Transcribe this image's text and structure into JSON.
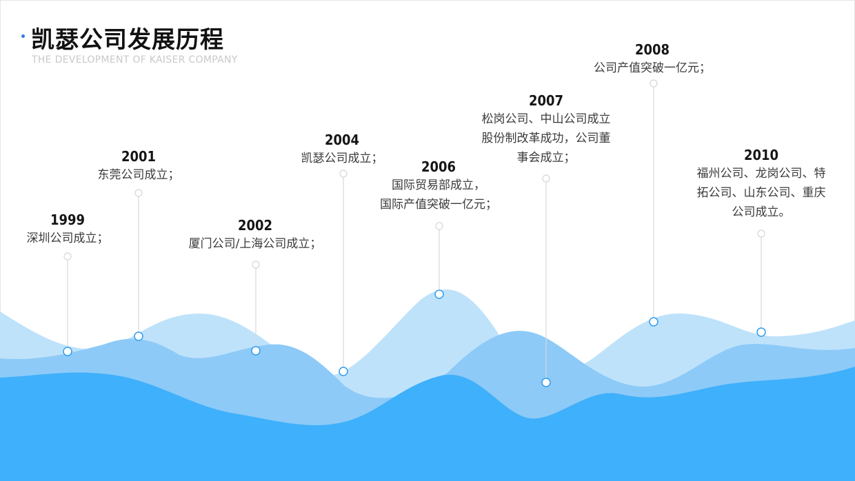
{
  "title": "凯瑟公司发展历程",
  "subtitle": "THE DEVELOPMENT OF KAISER COMPANY",
  "colors": {
    "wave_light": "#bfe2fb",
    "wave_mid": "#8dcaf7",
    "wave_dark": "#3fb0fb",
    "accent": "#2a7de1"
  },
  "events": [
    {
      "year": "1999",
      "lines": [
        "深圳公司成立；"
      ]
    },
    {
      "year": "2001",
      "lines": [
        "东莞公司成立；"
      ]
    },
    {
      "year": "2002",
      "lines": [
        "厦门公司/上海公司成立；"
      ]
    },
    {
      "year": "2004",
      "lines": [
        "凯瑟公司成立；"
      ]
    },
    {
      "year": "2006",
      "lines": [
        "国际贸易部成立，",
        "国际产值突破一亿元；"
      ]
    },
    {
      "year": "2007",
      "lines": [
        "松岗公司、中山公司成立",
        "股份制改革成功，公司董",
        "事会成立；"
      ]
    },
    {
      "year": "2008",
      "lines": [
        "公司产值突破一亿元；"
      ]
    },
    {
      "year": "2010",
      "lines": [
        "福州公司、龙岗公司、特",
        "拓公司、山东公司、重庆",
        "公司成立。"
      ]
    }
  ]
}
